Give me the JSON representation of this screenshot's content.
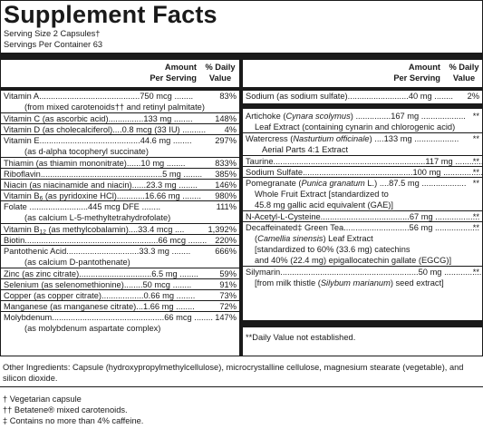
{
  "title": "Supplement Facts",
  "serving_size": "Serving Size 2 Capsules†",
  "servings_per_container": "Servings Per Container 63",
  "header": {
    "amount": "Amount",
    "per_serving": "Per Serving",
    "pct": "% Daily",
    "value": "Value"
  },
  "left": {
    "vitA": {
      "name": "Vitamin A",
      "dots": "...........................................",
      "amt": "750 mcg",
      "dots2": " ........",
      "dv": "83%",
      "sub": "(from mixed carotenoids†† and retinyl palmitate)"
    },
    "vitC": {
      "name": "Vitamin C (as ascorbic acid)",
      "dots": "...............",
      "amt": "133 mg",
      "dots2": " ........",
      "dv": "148%"
    },
    "vitD": {
      "name": "Vitamin D (as cholecalciferol)",
      "dots": "....",
      "amt": "0.8 mcg (33 IU)",
      "dots2": " ..........",
      "dv": "4%"
    },
    "vitE": {
      "name": "Vitamin E",
      "dots": "...........................................",
      "amt": "44.6 mg",
      "dots2": " ........",
      "dv": "297%",
      "sub": "(as d-alpha tocopheryl succinate)"
    },
    "thiamin": {
      "name": "Thiamin (as thiamin mononitrate)",
      "dots": "......",
      "amt": "10 mg",
      "dots2": " ........",
      "dv": "833%"
    },
    "riboflavin": {
      "name": "Riboflavin",
      "dots": "....................................................",
      "amt": "5 mg",
      "dots2": " ........",
      "dv": "385%"
    },
    "niacin": {
      "name": "Niacin (as niacinamide and niacin)",
      "dots": "......",
      "amt": "23.3 mg",
      "dots2": " ........",
      "dv": "146%"
    },
    "vitB6": {
      "name_pre": "Vitamin B",
      "name_sub": "6",
      "name_post": " (as pyridoxine HCl)",
      "dots": "............",
      "amt": "16.66 mg",
      "dots2": " ........",
      "dv": "980%"
    },
    "folate": {
      "name": "Folate",
      "dots": " .........................",
      "amt": "445 mcg DFE",
      "dots2": " ........",
      "dv": "111%",
      "sub": "(as calcium L-5-methyltetrahydrofolate)"
    },
    "vitB12": {
      "name_pre": "Vitamin B",
      "name_sub": "12",
      "name_post": " (as methylcobalamin)",
      "dots": "....",
      "amt": "33.4 mcg",
      "dots2": " ....",
      "dv": "1,392%"
    },
    "biotin": {
      "name": "Biotin",
      "dots": ".........................................................",
      "amt": "66 mcg",
      "dots2": " ........",
      "dv": "220%"
    },
    "panto": {
      "name": "Pantothenic Acid",
      "dots": "...............................",
      "amt": "33.3 mg",
      "dots2": " ........",
      "dv": "666%",
      "sub": "(as calcium D-pantothenate)"
    },
    "zinc": {
      "name": "Zinc (as zinc citrate)",
      "dots": "...............................",
      "amt": "6.5 mg",
      "dots2": " ........",
      "dv": "59%"
    },
    "selenium": {
      "name": "Selenium (as selenomethionine)",
      "dots": "........",
      "amt": "50 mcg",
      "dots2": " ........",
      "dv": "91%"
    },
    "copper": {
      "name": "Copper (as copper citrate)",
      "dots": "..................",
      "amt": "0.66 mg",
      "dots2": " ........",
      "dv": "73%"
    },
    "manganese": {
      "name": "Manganese (as manganese citrate)",
      "dots": "...",
      "amt": "1.66 mg",
      "dots2": " ........",
      "dv": "72%"
    },
    "molybdenum": {
      "name": "Molybdenum",
      "dots": "................................................",
      "amt": "66 mcg",
      "dots2": " ........",
      "dv": "147%",
      "sub": "(as molybdenum aspartate complex)"
    }
  },
  "right": {
    "sodium1": {
      "name": "Sodium (as sodium sulfate)",
      "dots": "..........................",
      "amt": "40 mg",
      "dots2": " ........",
      "dv": "2%"
    },
    "artichoke": {
      "name_pre": "Artichoke (",
      "name_it": "Cynara scolymus",
      "name_post": ")",
      "dots": " ...............",
      "amt": "167 mg",
      "dots2": " ...................",
      "dv": "**",
      "sub": "Leaf Extract (containing cynarin and chlorogenic acid)"
    },
    "watercress": {
      "name_pre": "Watercress (",
      "name_it": "Nasturtium officinale",
      "name_post": ")",
      "dots": " ....",
      "amt": "133 mg",
      "dots2": " ...................",
      "dv": "**",
      "sub": "Aerial Parts 4:1 Extract"
    },
    "taurine": {
      "name": "Taurine",
      "dots": ".................................................................",
      "amt": "117 mg",
      "dots2": " ...................",
      "dv": "**"
    },
    "sodium_sulfate": {
      "name": "Sodium Sulfate",
      "dots": "...............................................",
      "amt": "100 mg",
      "dots2": " ...................",
      "dv": "**"
    },
    "pomegranate": {
      "name_pre": "Pomegranate (",
      "name_it": "Punica granatum",
      "name_post": " L.)",
      "dots": " ....",
      "amt": "87.5 mg",
      "dots2": " ...................",
      "dv": "**",
      "sub1": "Whole Fruit Extract [standardized to",
      "sub2": "45.8 mg gallic acid equivalent (GAE)]"
    },
    "nac": {
      "name": "N-Acetyl-L-Cysteine",
      "dots": "......................................",
      "amt": "67 mg",
      "dots2": " ...................",
      "dv": "**"
    },
    "green_tea": {
      "name": "Decaffeinated‡ Green Tea",
      "dots": "............................",
      "amt": "56 mg",
      "dots2": " ...................",
      "dv": "**",
      "sub1_pre": "(",
      "sub1_it": "Camellia sinensis",
      "sub1_post": ") Leaf Extract",
      "sub2": "[standardized to 60% (33.6 mg) catechins",
      "sub3": "and 40% (22.4 mg) epigallocatechin gallate (EGCG)]"
    },
    "silymarin": {
      "name": "Silymarin",
      "dots": "...........................................................",
      "amt": "50 mg",
      "dots2": " ...................",
      "dv": "**",
      "sub_pre": "[from milk thistle (",
      "sub_it": "Silybum marianum",
      "sub_post": ") seed extract]"
    }
  },
  "footnote": "**Daily Value not established.",
  "other_ingredients": "Other Ingredients: Capsule (hydroxypropylmethylcellulose), microcrystalline cellulose, magnesium stearate (vegetable), and silicon dioxide.",
  "notes": [
    "† Vegetarian capsule",
    "†† Betatene® mixed carotenoids.",
    "‡ Contains no more than 4% caffeine."
  ]
}
